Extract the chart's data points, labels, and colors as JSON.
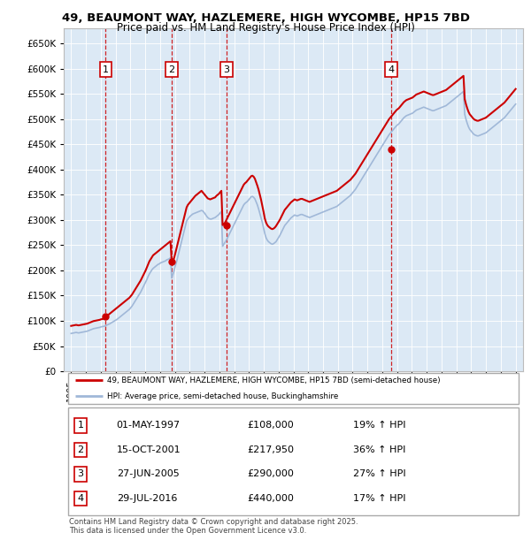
{
  "title_line1": "49, BEAUMONT WAY, HAZLEMERE, HIGH WYCOMBE, HP15 7BD",
  "title_line2": "Price paid vs. HM Land Registry's House Price Index (HPI)",
  "plot_bg_color": "#dce9f5",
  "ylim": [
    0,
    680000
  ],
  "yticks": [
    0,
    50000,
    100000,
    150000,
    200000,
    250000,
    300000,
    350000,
    400000,
    450000,
    500000,
    550000,
    600000,
    650000
  ],
  "xlim_start": 1994.5,
  "xlim_end": 2025.5,
  "sale_dates": [
    1997.33,
    2001.79,
    2005.49,
    2016.58
  ],
  "sale_prices": [
    108000,
    217950,
    290000,
    440000
  ],
  "sale_labels": [
    "1",
    "2",
    "3",
    "4"
  ],
  "legend_line1": "49, BEAUMONT WAY, HAZLEMERE, HIGH WYCOMBE, HP15 7BD (semi-detached house)",
  "legend_line2": "HPI: Average price, semi-detached house, Buckinghamshire",
  "table_rows": [
    {
      "num": "1",
      "date": "01-MAY-1997",
      "price": "£108,000",
      "hpi": "19% ↑ HPI"
    },
    {
      "num": "2",
      "date": "15-OCT-2001",
      "price": "£217,950",
      "hpi": "36% ↑ HPI"
    },
    {
      "num": "3",
      "date": "27-JUN-2005",
      "price": "£290,000",
      "hpi": "27% ↑ HPI"
    },
    {
      "num": "4",
      "date": "29-JUL-2016",
      "price": "£440,000",
      "hpi": "17% ↑ HPI"
    }
  ],
  "footer": "Contains HM Land Registry data © Crown copyright and database right 2025.\nThis data is licensed under the Open Government Licence v3.0.",
  "red_color": "#cc0000",
  "blue_color": "#a0b8d8",
  "red_line_y": [
    90000,
    90500,
    91000,
    91500,
    92000,
    91500,
    91000,
    91500,
    92000,
    92500,
    93000,
    93500,
    94000,
    94500,
    95500,
    96500,
    97500,
    98500,
    99500,
    100000,
    100500,
    101000,
    101500,
    102000,
    103000,
    103500,
    104000,
    104500,
    108000,
    110000,
    112000,
    114000,
    116000,
    118000,
    120000,
    122000,
    124000,
    126000,
    128000,
    130000,
    132000,
    134000,
    136000,
    138000,
    140000,
    142000,
    144000,
    146000,
    149000,
    152000,
    156000,
    160000,
    164000,
    168000,
    172000,
    176000,
    180000,
    185000,
    190000,
    195000,
    200000,
    206000,
    212000,
    218000,
    222000,
    226000,
    230000,
    232000,
    234000,
    236000,
    238000,
    240000,
    242000,
    244000,
    246000,
    248000,
    250000,
    252000,
    254000,
    256000,
    258000,
    217950,
    220000,
    225000,
    235000,
    245000,
    255000,
    265000,
    275000,
    285000,
    295000,
    305000,
    315000,
    325000,
    330000,
    333000,
    336000,
    339000,
    342000,
    345000,
    348000,
    350000,
    352000,
    354000,
    356000,
    358000,
    355000,
    352000,
    349000,
    346000,
    343000,
    342000,
    341000,
    342000,
    343000,
    344000,
    345000,
    348000,
    350000,
    352000,
    355000,
    358000,
    290000,
    292000,
    295000,
    300000,
    305000,
    310000,
    315000,
    320000,
    325000,
    330000,
    335000,
    340000,
    345000,
    350000,
    355000,
    360000,
    365000,
    370000,
    373000,
    375000,
    378000,
    381000,
    384000,
    387000,
    388000,
    386000,
    382000,
    375000,
    368000,
    360000,
    350000,
    340000,
    328000,
    316000,
    303000,
    295000,
    290000,
    287000,
    285000,
    283000,
    282000,
    283000,
    285000,
    288000,
    292000,
    296000,
    300000,
    305000,
    310000,
    315000,
    320000,
    323000,
    326000,
    329000,
    332000,
    335000,
    337000,
    339000,
    341000,
    340000,
    339000,
    340000,
    341000,
    342000,
    342000,
    341000,
    340000,
    339000,
    338000,
    337000,
    336000,
    337000,
    338000,
    339000,
    340000,
    341000,
    342000,
    343000,
    344000,
    345000,
    346000,
    347000,
    348000,
    349000,
    350000,
    351000,
    352000,
    353000,
    354000,
    355000,
    356000,
    357000,
    358000,
    360000,
    362000,
    364000,
    366000,
    368000,
    370000,
    372000,
    374000,
    376000,
    378000,
    380000,
    383000,
    386000,
    389000,
    392000,
    396000,
    400000,
    404000,
    408000,
    412000,
    416000,
    420000,
    424000,
    428000,
    432000,
    436000,
    440000,
    444000,
    448000,
    452000,
    456000,
    460000,
    464000,
    468000,
    472000,
    476000,
    480000,
    484000,
    488000,
    492000,
    496000,
    500000,
    503000,
    506000,
    509000,
    512000,
    515000,
    518000,
    520000,
    522000,
    525000,
    528000,
    531000,
    534000,
    536000,
    538000,
    539000,
    540000,
    541000,
    542000,
    543000,
    545000,
    547000,
    549000,
    550000,
    551000,
    552000,
    553000,
    554000,
    555000,
    554000,
    553000,
    552000,
    551000,
    550000,
    549000,
    548000,
    548000,
    549000,
    550000,
    551000,
    552000,
    553000,
    554000,
    555000,
    556000,
    557000,
    558000,
    560000,
    562000,
    564000,
    566000,
    568000,
    570000,
    572000,
    574000,
    576000,
    578000,
    580000,
    582000,
    584000,
    586000,
    540000,
    530000,
    522000,
    515000,
    510000,
    507000,
    504000,
    501000,
    499000,
    498000,
    497000,
    497000,
    498000,
    499000,
    500000,
    501000,
    502000,
    503000,
    505000,
    507000,
    509000,
    511000,
    513000,
    515000,
    517000,
    519000,
    521000,
    523000,
    525000,
    527000,
    529000,
    531000,
    533000,
    536000,
    539000,
    542000,
    545000,
    548000,
    551000,
    554000,
    557000,
    560000
  ],
  "blue_line_y": [
    75000,
    75500,
    76000,
    76500,
    77000,
    76500,
    76000,
    76500,
    77000,
    77500,
    78000,
    78500,
    79000,
    79500,
    80500,
    81500,
    82500,
    83500,
    84500,
    85000,
    85500,
    86000,
    86500,
    87000,
    88000,
    88500,
    89000,
    89500,
    90700,
    92000,
    93000,
    94000,
    95500,
    97000,
    98500,
    100000,
    101500,
    103000,
    105000,
    107000,
    109000,
    111000,
    113000,
    115000,
    117000,
    119000,
    121000,
    123000,
    126000,
    129000,
    133000,
    137000,
    141000,
    145000,
    149000,
    153000,
    157000,
    162000,
    167000,
    172000,
    177000,
    182000,
    188000,
    193000,
    197000,
    201000,
    204000,
    206000,
    208000,
    210000,
    212000,
    213000,
    215000,
    216000,
    217000,
    218000,
    219000,
    221000,
    222000,
    223000,
    225000,
    185000,
    192000,
    200000,
    210000,
    218000,
    228000,
    238000,
    248000,
    258000,
    268000,
    278000,
    288000,
    298000,
    302000,
    305000,
    308000,
    310000,
    312000,
    313000,
    314000,
    315000,
    316000,
    317000,
    318000,
    319000,
    318000,
    315000,
    312000,
    308000,
    305000,
    303000,
    302000,
    302000,
    303000,
    304000,
    305000,
    307000,
    309000,
    311000,
    314000,
    317000,
    248000,
    252000,
    256000,
    260000,
    265000,
    270000,
    275000,
    280000,
    285000,
    290000,
    295000,
    300000,
    305000,
    310000,
    315000,
    320000,
    325000,
    330000,
    333000,
    335000,
    337000,
    340000,
    343000,
    346000,
    347000,
    345000,
    342000,
    336000,
    330000,
    322000,
    313000,
    304000,
    295000,
    284000,
    273000,
    265000,
    260000,
    257000,
    255000,
    253000,
    252000,
    253000,
    255000,
    257000,
    261000,
    265000,
    269000,
    274000,
    279000,
    284000,
    289000,
    292000,
    295000,
    298000,
    301000,
    304000,
    306000,
    308000,
    310000,
    309000,
    308000,
    309000,
    310000,
    311000,
    311000,
    310000,
    309000,
    308000,
    307000,
    306000,
    305000,
    306000,
    307000,
    308000,
    309000,
    310000,
    311000,
    312000,
    313000,
    314000,
    315000,
    316000,
    317000,
    318000,
    319000,
    320000,
    321000,
    322000,
    323000,
    324000,
    325000,
    326000,
    327000,
    329000,
    331000,
    333000,
    335000,
    337000,
    339000,
    341000,
    343000,
    345000,
    347000,
    349000,
    352000,
    355000,
    358000,
    361000,
    365000,
    369000,
    373000,
    377000,
    381000,
    385000,
    389000,
    393000,
    397000,
    401000,
    405000,
    409000,
    413000,
    417000,
    421000,
    425000,
    429000,
    433000,
    437000,
    441000,
    445000,
    449000,
    453000,
    457000,
    461000,
    465000,
    469000,
    472000,
    475000,
    478000,
    481000,
    484000,
    487000,
    489000,
    491000,
    494000,
    497000,
    500000,
    503000,
    505000,
    507000,
    508000,
    509000,
    510000,
    511000,
    512000,
    514000,
    516000,
    518000,
    519000,
    520000,
    521000,
    522000,
    523000,
    524000,
    523000,
    522000,
    521000,
    520000,
    519000,
    518000,
    517000,
    517000,
    518000,
    519000,
    520000,
    521000,
    522000,
    523000,
    524000,
    525000,
    526000,
    527000,
    529000,
    531000,
    533000,
    535000,
    537000,
    539000,
    541000,
    543000,
    545000,
    547000,
    549000,
    551000,
    553000,
    555000,
    510000,
    500000,
    492000,
    485000,
    480000,
    477000,
    474000,
    471000,
    469000,
    468000,
    467000,
    467000,
    468000,
    469000,
    470000,
    471000,
    472000,
    473000,
    475000,
    477000,
    479000,
    481000,
    483000,
    485000,
    487000,
    489000,
    491000,
    493000,
    495000,
    497000,
    499000,
    501000,
    503000,
    506000,
    509000,
    512000,
    515000,
    518000,
    521000,
    524000,
    527000,
    530000
  ]
}
